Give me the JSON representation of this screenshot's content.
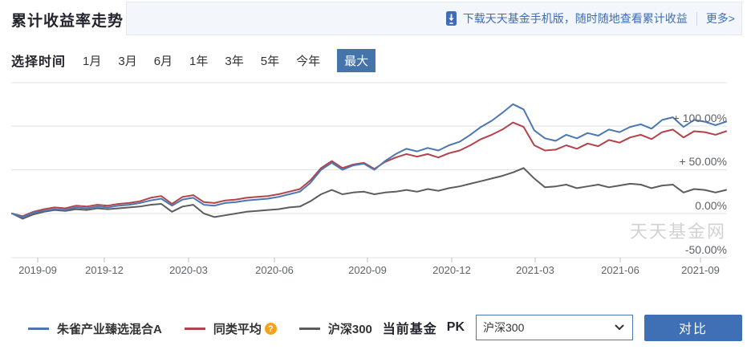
{
  "header": {
    "title": "累计收益率走势",
    "promo": {
      "download_text": "下载天天基金手机版，随时随地查看累计收益",
      "more_label": "更多>"
    }
  },
  "time_selector": {
    "label": "选择时间",
    "options": [
      "1月",
      "3月",
      "6月",
      "1年",
      "3年",
      "5年",
      "今年",
      "最大"
    ],
    "selected": "最大"
  },
  "chart_data": {
    "type": "line",
    "title": "累计收益率走势",
    "x_tick_labels": [
      "2019-09",
      "2019-12",
      "2020-03",
      "2020-06",
      "2020-09",
      "2020-12",
      "2021-03",
      "2021-06",
      "2021-09"
    ],
    "y_tick_labels": [
      "+ 100.00%",
      "+ 50.00%",
      "0.00%",
      "-50.00%"
    ],
    "y_axis": {
      "min": -50,
      "max": 150,
      "unit": "%",
      "gridlines": [
        150,
        100,
        50,
        0,
        -50
      ]
    },
    "x_range": [
      "2019-08",
      "2021-09"
    ],
    "legend_position": "bottom-left",
    "watermark": "天天基金网",
    "series": [
      {
        "name": "沪深300",
        "color": "#5c5c5c",
        "values": [
          0,
          -6,
          -1,
          2,
          4,
          3,
          5,
          4,
          6,
          5,
          6,
          7,
          8,
          10,
          11,
          2,
          8,
          10,
          0,
          -4,
          -2,
          0,
          2,
          3,
          4,
          5,
          7,
          8,
          14,
          22,
          27,
          22,
          24,
          25,
          22,
          24,
          25,
          27,
          25,
          28,
          26,
          29,
          31,
          34,
          37,
          40,
          43,
          47,
          52,
          40,
          30,
          31,
          33,
          29,
          31,
          33,
          30,
          32,
          34,
          33,
          29,
          32,
          33,
          24,
          28,
          27,
          24,
          27
        ]
      },
      {
        "name": "同类平均",
        "color": "#b2434b",
        "values": [
          0,
          -3,
          2,
          5,
          7,
          6,
          9,
          8,
          10,
          9,
          11,
          12,
          14,
          18,
          20,
          11,
          19,
          21,
          13,
          12,
          15,
          16,
          18,
          19,
          20,
          22,
          25,
          28,
          38,
          52,
          60,
          52,
          56,
          58,
          51,
          59,
          64,
          68,
          65,
          68,
          64,
          69,
          72,
          78,
          85,
          90,
          96,
          104,
          99,
          78,
          72,
          73,
          78,
          74,
          80,
          77,
          84,
          81,
          87,
          90,
          85,
          93,
          96,
          87,
          94,
          93,
          90,
          94
        ]
      },
      {
        "name": "朱雀产业臻选混合A",
        "color": "#4b77b3",
        "values": [
          0,
          -4,
          1,
          3,
          5,
          4,
          7,
          6,
          8,
          7,
          9,
          10,
          12,
          15,
          17,
          9,
          16,
          18,
          10,
          9,
          12,
          13,
          15,
          16,
          17,
          19,
          22,
          25,
          35,
          50,
          58,
          50,
          55,
          57,
          50,
          60,
          68,
          74,
          71,
          75,
          72,
          78,
          82,
          90,
          99,
          106,
          115,
          125,
          119,
          95,
          86,
          83,
          90,
          86,
          92,
          89,
          96,
          93,
          99,
          102,
          97,
          107,
          110,
          99,
          107,
          105,
          101,
          105
        ]
      }
    ]
  },
  "legend": [
    {
      "label": "朱雀产业臻选混合A",
      "color": "#4b77b3",
      "badge": null
    },
    {
      "label": "同类平均",
      "color": "#b2434b",
      "badge": "?"
    },
    {
      "label": "沪深300",
      "color": "#5c5c5c",
      "badge": null
    }
  ],
  "pk": {
    "label": "当前基金",
    "vs_text": "PK",
    "select_value": "沪深300",
    "button_label": "对比"
  },
  "icons": {
    "phone_download": "phone-download-icon",
    "select_chevron": "chevron-down-icon",
    "help_badge": "question-mark-badge"
  },
  "colors": {
    "accent_blue": "#3f6fb5",
    "selected_tab_blue": "#4574ab",
    "link_blue": "#3e6db5",
    "promo_bg": "#f3f6fa",
    "gridline": "#e2e2e2",
    "axis_text": "#5f646b",
    "watermark": "#d2d2d2"
  }
}
